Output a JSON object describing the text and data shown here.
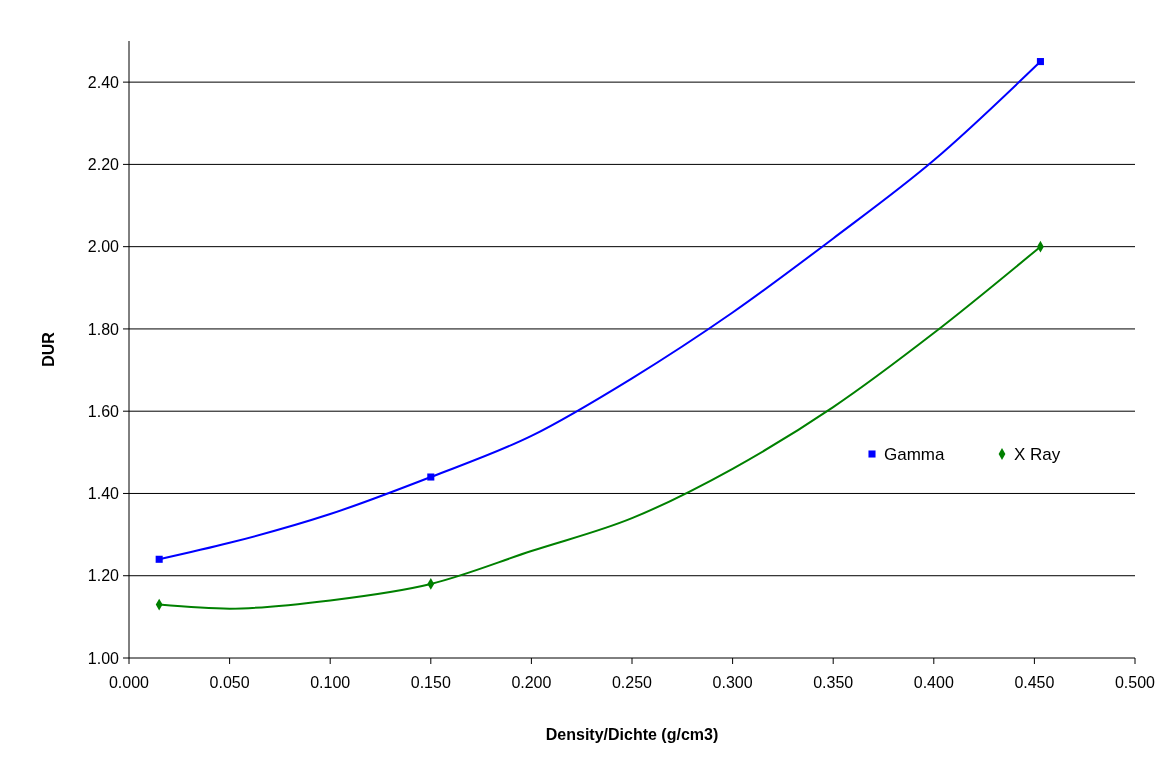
{
  "chart_data": {
    "type": "line",
    "xlabel": "Density/Dichte (g/cm3)",
    "ylabel": "DUR",
    "xlim": [
      0,
      0.5
    ],
    "xticks": [
      {
        "value": 0,
        "label": "0.000"
      },
      {
        "value": 0.05,
        "label": "0.050"
      },
      {
        "value": 0.1,
        "label": "0.100"
      },
      {
        "value": 0.15,
        "label": "0.150"
      },
      {
        "value": 0.2,
        "label": "0.200"
      },
      {
        "value": 0.25,
        "label": "0.250"
      },
      {
        "value": 0.3,
        "label": "0.300"
      },
      {
        "value": 0.35,
        "label": "0.350"
      },
      {
        "value": 0.4,
        "label": "0.400"
      },
      {
        "value": 0.45,
        "label": "0.450"
      },
      {
        "value": 0.5,
        "label": "0.500"
      }
    ],
    "ylim": [
      1,
      2.5
    ],
    "yticks": [
      {
        "value": 1,
        "label": "1.00"
      },
      {
        "value": 1.2,
        "label": "1.20"
      },
      {
        "value": 1.4,
        "label": "1.40"
      },
      {
        "value": 1.6,
        "label": "1.60"
      },
      {
        "value": 1.8,
        "label": "1.80"
      },
      {
        "value": 2,
        "label": "2.00"
      },
      {
        "value": 2.2,
        "label": "2.20"
      },
      {
        "value": 2.4,
        "label": "2.40"
      }
    ],
    "grid": "y",
    "legend": "right",
    "series": [
      {
        "color": "#0000ff",
        "marker": "none",
        "x": [
          0.015,
          0.05,
          0.1,
          0.15,
          0.2,
          0.25,
          0.3,
          0.35,
          0.4,
          0.453
        ],
        "values": [
          1.24,
          1.28,
          1.35,
          1.44,
          1.54,
          1.68,
          1.84,
          2.02,
          2.21,
          2.45
        ]
      },
      {
        "color": "#008000",
        "marker": "none",
        "x": [
          0.015,
          0.05,
          0.1,
          0.15,
          0.2,
          0.25,
          0.3,
          0.35,
          0.4,
          0.453
        ],
        "values": [
          1.13,
          1.12,
          1.14,
          1.18,
          1.26,
          1.34,
          1.46,
          1.61,
          1.79,
          2.0
        ]
      },
      {
        "type": "scatter",
        "name": "Gamma",
        "color": "#0000ff",
        "marker": "square",
        "x": [
          0.015,
          0.15,
          0.453
        ],
        "values": [
          1.24,
          1.44,
          2.45
        ]
      },
      {
        "type": "scatter",
        "name": "X Ray",
        "color": "#008000",
        "marker": "diamond",
        "x": [
          0.015,
          0.15,
          0.453
        ],
        "values": [
          1.13,
          1.18,
          2.0
        ]
      }
    ]
  }
}
